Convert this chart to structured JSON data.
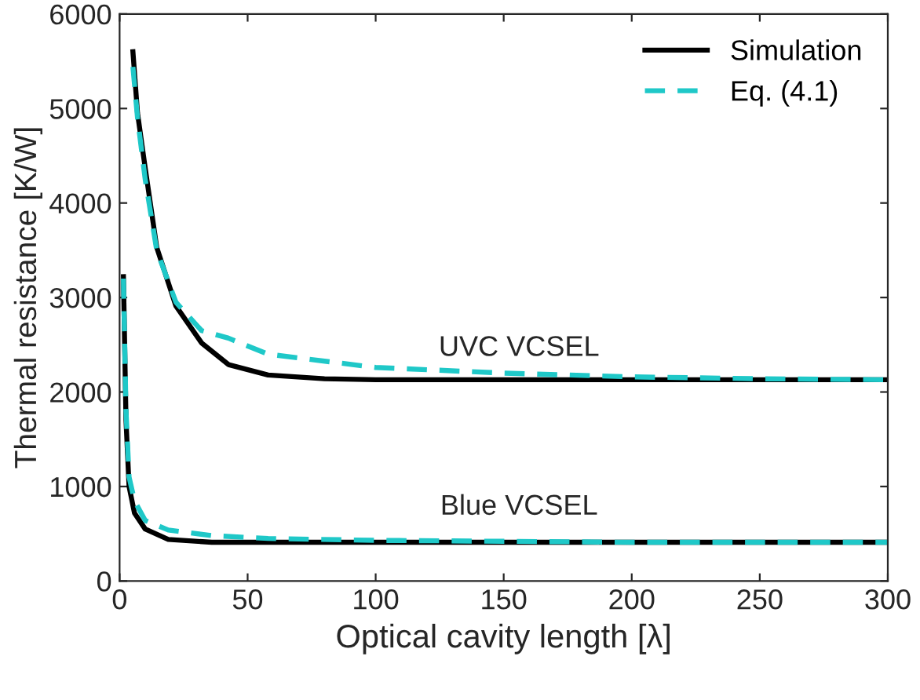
{
  "chart_data": {
    "type": "line",
    "xlabel": "Optical cavity length [λ]",
    "ylabel": "Thermal resistance [K/W]",
    "xlim": [
      0,
      300
    ],
    "ylim": [
      0,
      6000
    ],
    "xticks": [
      0,
      50,
      100,
      150,
      200,
      250,
      300
    ],
    "yticks": [
      0,
      1000,
      2000,
      3000,
      4000,
      5000,
      6000
    ],
    "grid": false,
    "legend": "top right",
    "marker": "none",
    "annotations": [
      "UVC VCSEL",
      "Blue VCSEL"
    ],
    "series": [
      {
        "name": "Simulation",
        "color": "#000000",
        "line_style": "solid",
        "x": [
          5.2,
          7,
          10,
          14.5,
          22,
          32,
          42.5,
          58,
          80,
          100,
          150,
          200,
          250,
          300
        ],
        "values": [
          5600,
          4950,
          4370,
          3530,
          2910,
          2520,
          2290,
          2180,
          2140,
          2130,
          2130,
          2130,
          2130,
          2130
        ]
      },
      {
        "color": "#000000",
        "line_style": "solid",
        "x": [
          1.5,
          2.5,
          3.7,
          5.8,
          10,
          19,
          36,
          60,
          100,
          150,
          200,
          250,
          300
        ],
        "values": [
          3220,
          1700,
          1000,
          720,
          550,
          440,
          410,
          410,
          410,
          410,
          410,
          410,
          410
        ]
      },
      {
        "name": "Eq. (4.1)",
        "color": "#1fc8c8",
        "line_style": "dashed",
        "x": [
          5.2,
          7,
          10,
          14.5,
          22,
          32,
          42.5,
          58,
          100,
          150,
          200,
          250,
          300
        ],
        "values": [
          5440,
          4900,
          4250,
          3500,
          2950,
          2650,
          2570,
          2400,
          2260,
          2200,
          2160,
          2140,
          2130
        ]
      },
      {
        "color": "#1fc8c8",
        "line_style": "dashed",
        "x": [
          1.5,
          2.5,
          3.7,
          5.8,
          10,
          19,
          36,
          58,
          100,
          150,
          200,
          250,
          300
        ],
        "values": [
          3200,
          1800,
          1100,
          850,
          640,
          540,
          480,
          450,
          430,
          420,
          410,
          410,
          410
        ]
      }
    ]
  }
}
